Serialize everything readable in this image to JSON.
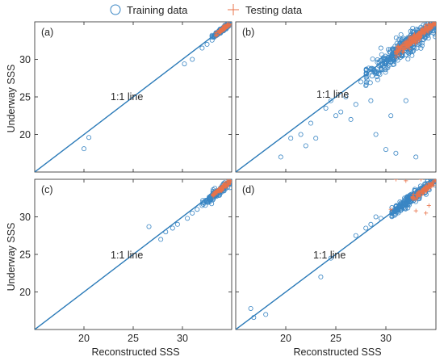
{
  "legend": {
    "training_label": "Training data",
    "testing_label": "Testing data",
    "training_color": "#3a86c4",
    "testing_color": "#e8734a",
    "training_marker": "circle",
    "testing_marker": "plus"
  },
  "chart_data": [
    {
      "type": "scatter",
      "panel_label": "(a)",
      "xlabel": "",
      "ylabel": "Underway SSS",
      "xlim": [
        15,
        35
      ],
      "ylim": [
        15,
        35
      ],
      "y_ticks": [
        20,
        25,
        30
      ],
      "x_ticks": [],
      "reference_line": {
        "label": "1:1 line",
        "from": [
          15,
          15
        ],
        "to": [
          35,
          35
        ]
      },
      "series": [
        {
          "name": "Training data",
          "style": "train",
          "cluster": {
            "center": [
              34.0,
              33.9
            ],
            "spread": [
              0.45,
              0.45
            ],
            "count": 120
          },
          "points": [
            [
              20.0,
              18.1
            ],
            [
              20.5,
              19.6
            ],
            [
              30.2,
              29.4
            ],
            [
              31.0,
              30.0
            ],
            [
              32.5,
              32.0
            ],
            [
              33.0,
              33.2
            ],
            [
              32.0,
              31.5
            ]
          ]
        },
        {
          "name": "Testing data",
          "style": "test",
          "cluster": {
            "center": [
              34.1,
              34.0
            ],
            "spread": [
              0.3,
              0.3
            ],
            "count": 90
          },
          "points": []
        }
      ]
    },
    {
      "type": "scatter",
      "panel_label": "(b)",
      "xlabel": "",
      "ylabel": "",
      "xlim": [
        15,
        35
      ],
      "ylim": [
        15,
        35
      ],
      "y_ticks": [
        20,
        25,
        30
      ],
      "x_ticks": [],
      "reference_line": {
        "label": "1:1 line",
        "from": [
          15,
          15
        ],
        "to": [
          35,
          35
        ]
      },
      "series": [
        {
          "name": "Training data",
          "style": "train",
          "cluster": {
            "center": [
              32.0,
              31.8
            ],
            "spread": [
              1.8,
              1.9
            ],
            "count": 420
          },
          "points": [
            [
              19.5,
              17.0
            ],
            [
              20.5,
              19.5
            ],
            [
              21.5,
              20.0
            ],
            [
              22.5,
              21.5
            ],
            [
              23.0,
              19.5
            ],
            [
              24.0,
              23.5
            ],
            [
              25.0,
              22.5
            ],
            [
              26.0,
              25.0
            ],
            [
              27.0,
              24.0
            ],
            [
              28.0,
              26.5
            ],
            [
              29.0,
              20.0
            ],
            [
              30.0,
              18.0
            ],
            [
              31.0,
              17.5
            ],
            [
              33.0,
              17.0
            ],
            [
              29.5,
              31.5
            ],
            [
              25.5,
              23.0
            ],
            [
              22.0,
              18.5
            ],
            [
              24.5,
              24.5
            ],
            [
              27.5,
              27.0
            ],
            [
              26.5,
              22.0
            ],
            [
              28.5,
              24.5
            ],
            [
              32.0,
              24.5
            ],
            [
              30.5,
              22.5
            ]
          ]
        },
        {
          "name": "Testing data",
          "style": "test",
          "cluster": {
            "center": [
              33.0,
              32.9
            ],
            "spread": [
              0.9,
              0.9
            ],
            "count": 220
          },
          "points": []
        }
      ]
    },
    {
      "type": "scatter",
      "panel_label": "(c)",
      "xlabel": "Reconstructed SSS",
      "ylabel": "Underway SSS",
      "xlim": [
        15,
        35
      ],
      "ylim": [
        15,
        35
      ],
      "y_ticks": [
        20,
        25,
        30
      ],
      "x_ticks": [
        20,
        25,
        30
      ],
      "reference_line": {
        "label": "1:1 line",
        "from": [
          15,
          15
        ],
        "to": [
          35,
          35
        ]
      },
      "series": [
        {
          "name": "Training data",
          "style": "train",
          "cluster": {
            "center": [
              33.6,
              33.3
            ],
            "spread": [
              0.7,
              0.7
            ],
            "count": 150
          },
          "points": [
            [
              26.6,
              28.7
            ],
            [
              27.8,
              27.0
            ],
            [
              28.3,
              28.0
            ],
            [
              29.0,
              28.5
            ],
            [
              29.5,
              29.0
            ],
            [
              30.5,
              29.8
            ],
            [
              31.0,
              30.5
            ],
            [
              31.5,
              31.0
            ],
            [
              32.0,
              31.5
            ]
          ]
        },
        {
          "name": "Testing data",
          "style": "test",
          "cluster": {
            "center": [
              34.0,
              33.8
            ],
            "spread": [
              0.4,
              0.4
            ],
            "count": 110
          },
          "points": []
        }
      ]
    },
    {
      "type": "scatter",
      "panel_label": "(d)",
      "xlabel": "Reconstructed SSS",
      "ylabel": "",
      "xlim": [
        15,
        35
      ],
      "ylim": [
        15,
        35
      ],
      "y_ticks": [
        20,
        25,
        30
      ],
      "x_ticks": [
        20,
        25,
        30
      ],
      "reference_line": {
        "label": "1:1 line",
        "from": [
          15,
          15
        ],
        "to": [
          35,
          35
        ]
      },
      "series": [
        {
          "name": "Training data",
          "style": "train",
          "cluster": {
            "center": [
              32.8,
              32.7
            ],
            "spread": [
              1.0,
              1.0
            ],
            "count": 260
          },
          "points": [
            [
              16.5,
              17.8
            ],
            [
              16.8,
              16.6
            ],
            [
              18.0,
              17.0
            ],
            [
              23.5,
              22.0
            ],
            [
              24.5,
              24.5
            ],
            [
              27.0,
              27.5
            ],
            [
              28.0,
              28.5
            ],
            [
              28.5,
              29.0
            ],
            [
              29.0,
              30.0
            ],
            [
              29.5,
              29.8
            ]
          ]
        },
        {
          "name": "Testing data",
          "style": "test",
          "cluster": {
            "center": [
              34.0,
              33.8
            ],
            "spread": [
              0.6,
              0.6
            ],
            "count": 100
          },
          "points": [
            [
              31.0,
              35.0
            ],
            [
              32.0,
              34.8
            ],
            [
              33.5,
              35.0
            ],
            [
              34.0,
              30.5
            ],
            [
              34.3,
              31.5
            ],
            [
              33.0,
              30.8
            ],
            [
              30.5,
              31.0
            ]
          ]
        }
      ]
    }
  ]
}
